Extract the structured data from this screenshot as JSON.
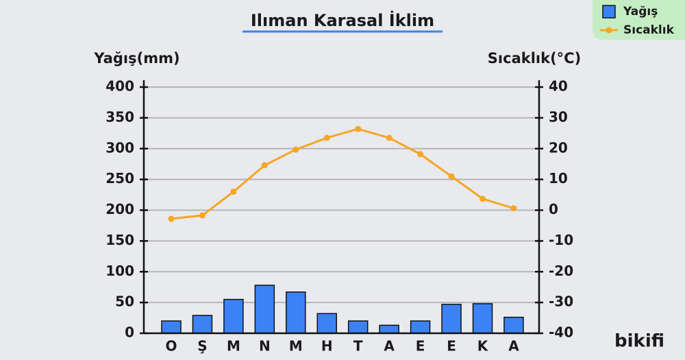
{
  "chart_data": {
    "type": "bar-line",
    "title": "Ilıman Karasal İklim",
    "y_label": "Yağış(mm)",
    "y2_label": "Sıcaklık(°C)",
    "categories": [
      "O",
      "Ş",
      "M",
      "N",
      "M",
      "H",
      "T",
      "A",
      "E",
      "E",
      "K",
      "A"
    ],
    "series": [
      {
        "name": "Yağış",
        "type": "bar",
        "color": "#3b82f6",
        "values": [
          20,
          29,
          55,
          78,
          67,
          32,
          20,
          13,
          20,
          47,
          48,
          26
        ]
      },
      {
        "name": "Sıcaklık",
        "type": "line",
        "axis": "y2",
        "color": "#f5a623",
        "values": [
          -2.8,
          -1.7,
          6,
          14.6,
          19.7,
          23.5,
          26.4,
          23.5,
          18.2,
          11,
          3.7,
          0.6
        ]
      }
    ],
    "ylim": [
      0,
      400
    ],
    "yticks": [
      0,
      50,
      100,
      150,
      200,
      250,
      300,
      350,
      400
    ],
    "y2lim": [
      -40,
      40
    ],
    "y2ticks": [
      -40,
      -30,
      -20,
      -10,
      0,
      10,
      20,
      30,
      40
    ],
    "grid": true,
    "legend": "top-right"
  },
  "logo": "bikifi"
}
